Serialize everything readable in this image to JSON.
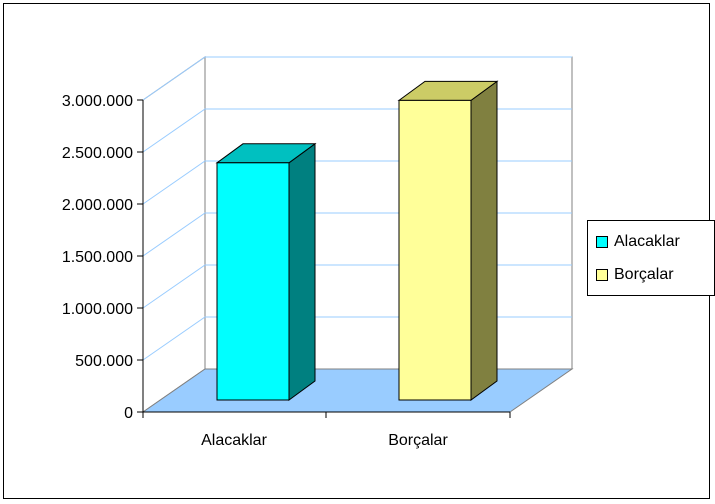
{
  "chart_data": {
    "type": "bar",
    "categories": [
      "Alacaklar",
      "Borçalar"
    ],
    "values": [
      2300000,
      2900000
    ],
    "ylim": [
      0,
      3000000
    ],
    "yticks": [
      0,
      500000,
      1000000,
      1500000,
      2000000,
      2500000,
      3000000
    ],
    "ytick_labels": [
      "0",
      "500.000",
      "1.000.000",
      "1.500.000",
      "2.000.000",
      "2.500.000",
      "3.000.000"
    ],
    "legend": [
      "Alacaklar",
      "Borçalar"
    ],
    "legend_position": "right",
    "grid": true,
    "colors": {
      "bar_fronts": [
        "#00ffff",
        "#ffff99"
      ],
      "bar_sides": [
        "#008080",
        "#808040"
      ],
      "bar_tops": [
        "#00c0c0",
        "#cccc66"
      ],
      "floor": "#99ccff",
      "gridline": "#99ccff"
    }
  }
}
